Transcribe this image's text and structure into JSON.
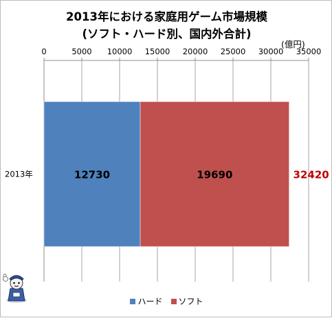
{
  "chart_data": {
    "type": "bar",
    "orientation": "horizontal",
    "stacked": true,
    "title": [
      "2013年における家庭用ゲーム市場規模",
      "(ソフト・ハード別、国内外合計)"
    ],
    "unit": "(億円)",
    "categories": [
      "2013年"
    ],
    "series": [
      {
        "name": "ハード",
        "values": [
          12730
        ],
        "color": "#4f81bd"
      },
      {
        "name": "ソフト",
        "values": [
          19690
        ],
        "color": "#c0504d"
      }
    ],
    "totals": [
      32420
    ],
    "total_color": "#c00000",
    "xlim": [
      0,
      35000
    ],
    "xticks": [
      0,
      5000,
      10000,
      15000,
      20000,
      25000,
      30000,
      35000
    ],
    "grid": true,
    "legend_position": "bottom"
  }
}
